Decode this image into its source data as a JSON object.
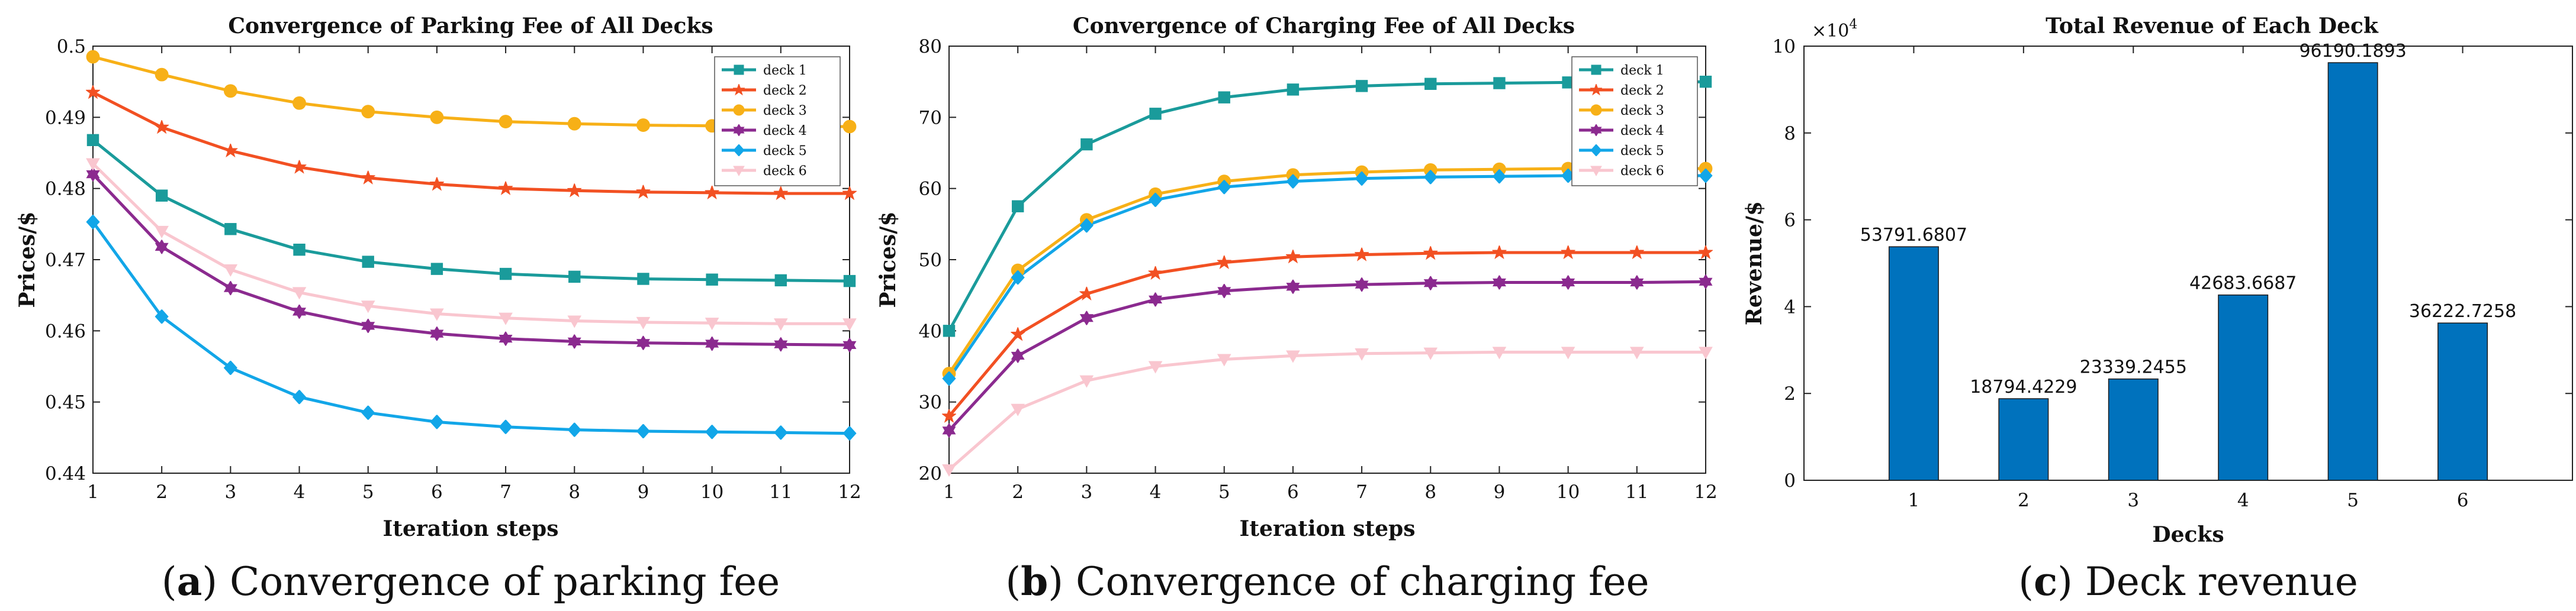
{
  "chart_data": [
    {
      "id": "parking",
      "type": "line",
      "title": "Convergence of Parking Fee of All Decks",
      "xlabel": "Iteration steps",
      "ylabel": "Prices/$",
      "xlim": [
        1,
        12
      ],
      "ylim": [
        0.44,
        0.5
      ],
      "xticks": [
        1,
        2,
        3,
        4,
        5,
        6,
        7,
        8,
        9,
        10,
        11,
        12
      ],
      "yticks": [
        0.44,
        0.45,
        0.46,
        0.47,
        0.48,
        0.49,
        0.5
      ],
      "ytick_labels": [
        "0.44",
        "0.45",
        "0.46",
        "0.47",
        "0.48",
        "0.49",
        "0.5"
      ],
      "legend_position": "top-right",
      "x": [
        1,
        2,
        3,
        4,
        5,
        6,
        7,
        8,
        9,
        10,
        11,
        12
      ],
      "series": [
        {
          "name": "deck 1",
          "color": "#1a9b9b",
          "marker": "square",
          "values": [
            0.4868,
            0.479,
            0.4743,
            0.4714,
            0.4697,
            0.4687,
            0.468,
            0.4676,
            0.4673,
            0.4672,
            0.4671,
            0.467
          ]
        },
        {
          "name": "deck 2",
          "color": "#f25022",
          "marker": "star",
          "values": [
            0.4935,
            0.4886,
            0.4853,
            0.483,
            0.4815,
            0.4806,
            0.48,
            0.4797,
            0.4795,
            0.4794,
            0.4793,
            0.4793
          ]
        },
        {
          "name": "deck 3",
          "color": "#f7b017",
          "marker": "circle",
          "values": [
            0.4985,
            0.496,
            0.4937,
            0.492,
            0.4908,
            0.49,
            0.4894,
            0.4891,
            0.4889,
            0.4888,
            0.4887,
            0.4887
          ]
        },
        {
          "name": "deck 4",
          "color": "#8b2a8f",
          "marker": "hexagram",
          "values": [
            0.482,
            0.4718,
            0.466,
            0.4627,
            0.4607,
            0.4596,
            0.4589,
            0.4585,
            0.4583,
            0.4582,
            0.4581,
            0.458
          ]
        },
        {
          "name": "deck 5",
          "color": "#12a6e8",
          "marker": "diamond",
          "values": [
            0.4753,
            0.462,
            0.4548,
            0.4507,
            0.4485,
            0.4472,
            0.4465,
            0.4461,
            0.4459,
            0.4458,
            0.4457,
            0.4456
          ]
        },
        {
          "name": "deck 6",
          "color": "#f9c6cf",
          "marker": "triangle-down",
          "values": [
            0.4835,
            0.474,
            0.4686,
            0.4654,
            0.4635,
            0.4624,
            0.4618,
            0.4614,
            0.4612,
            0.4611,
            0.461,
            0.461
          ]
        }
      ],
      "caption_letter": "a",
      "caption_text": " Convergence of parking fee"
    },
    {
      "id": "charging",
      "type": "line",
      "title": "Convergence of Charging Fee of All Decks",
      "xlabel": "Iteration steps",
      "ylabel": "Prices/$",
      "xlim": [
        1,
        12
      ],
      "ylim": [
        20,
        80
      ],
      "xticks": [
        1,
        2,
        3,
        4,
        5,
        6,
        7,
        8,
        9,
        10,
        11,
        12
      ],
      "yticks": [
        20,
        30,
        40,
        50,
        60,
        70,
        80
      ],
      "ytick_labels": [
        "20",
        "30",
        "40",
        "50",
        "60",
        "70",
        "80"
      ],
      "legend_position": "top-right",
      "x": [
        1,
        2,
        3,
        4,
        5,
        6,
        7,
        8,
        9,
        10,
        11,
        12
      ],
      "series": [
        {
          "name": "deck 1",
          "color": "#1a9b9b",
          "marker": "square",
          "values": [
            40.0,
            57.5,
            66.2,
            70.5,
            72.8,
            73.9,
            74.4,
            74.7,
            74.8,
            74.9,
            74.9,
            75.0
          ]
        },
        {
          "name": "deck 2",
          "color": "#f25022",
          "marker": "star",
          "values": [
            28.0,
            39.5,
            45.2,
            48.1,
            49.6,
            50.4,
            50.7,
            50.9,
            51.0,
            51.0,
            51.0,
            51.0
          ]
        },
        {
          "name": "deck 3",
          "color": "#f7b017",
          "marker": "circle",
          "values": [
            34.0,
            48.5,
            55.6,
            59.2,
            61.0,
            61.9,
            62.3,
            62.6,
            62.7,
            62.8,
            62.8,
            62.8
          ]
        },
        {
          "name": "deck 4",
          "color": "#8b2a8f",
          "marker": "hexagram",
          "values": [
            26.0,
            36.5,
            41.8,
            44.4,
            45.6,
            46.2,
            46.5,
            46.7,
            46.8,
            46.8,
            46.8,
            46.9
          ]
        },
        {
          "name": "deck 5",
          "color": "#12a6e8",
          "marker": "diamond",
          "values": [
            33.3,
            47.5,
            54.8,
            58.4,
            60.2,
            61.0,
            61.4,
            61.6,
            61.7,
            61.8,
            61.8,
            61.8
          ]
        },
        {
          "name": "deck 6",
          "color": "#f9c6cf",
          "marker": "triangle-down",
          "values": [
            20.5,
            29.0,
            33.0,
            35.0,
            36.0,
            36.5,
            36.8,
            36.9,
            37.0,
            37.0,
            37.0,
            37.0
          ]
        }
      ],
      "caption_letter": "b",
      "caption_text": " Convergence of charging fee"
    },
    {
      "id": "revenue",
      "type": "bar",
      "title": "Total Revenue of Each Deck",
      "xlabel": "Decks",
      "ylabel": "Revenue/$",
      "categories": [
        "1",
        "2",
        "3",
        "4",
        "5",
        "6"
      ],
      "values": [
        53791.6807,
        18794.4229,
        23339.2455,
        42683.6687,
        96190.1893,
        36222.7258
      ],
      "data_labels": [
        "53791.6807",
        "18794.4229",
        "23339.2455",
        "42683.6687",
        "96190.1893",
        "36222.7258"
      ],
      "ylim": [
        0,
        100000
      ],
      "yticks": [
        0,
        20000,
        40000,
        60000,
        80000,
        100000
      ],
      "ytick_labels": [
        "0",
        "2",
        "4",
        "6",
        "8",
        "10"
      ],
      "y_multiplier_base": "×10",
      "y_multiplier_exp": "4",
      "bar_color": "#0072bd",
      "caption_letter": "c",
      "caption_text": " Deck revenue"
    }
  ]
}
